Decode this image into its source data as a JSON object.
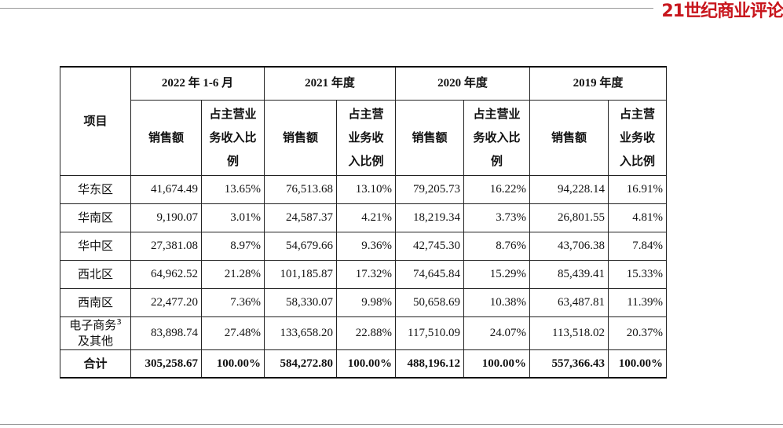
{
  "logo": "21世纪商业评论",
  "table": {
    "corner": "项目",
    "periods": [
      "2022 年 1-6 月",
      "2021 年度",
      "2020 年度",
      "2019 年度"
    ],
    "sub_headers": [
      [
        "销售额"
      ],
      [
        "占主营业",
        "务收入比",
        "例"
      ],
      [
        "销售额"
      ],
      [
        "占主营",
        "业务收",
        "入比例"
      ],
      [
        "销售额"
      ],
      [
        "占主营业",
        "务收入比",
        "例"
      ],
      [
        "销售额"
      ],
      [
        "占主营",
        "业务收",
        "入比例"
      ]
    ],
    "rows": [
      {
        "region": [
          "华东区"
        ],
        "cells": [
          "41,674.49",
          "13.65%",
          "76,513.68",
          "13.10%",
          "79,205.73",
          "16.22%",
          "94,228.14",
          "16.91%"
        ]
      },
      {
        "region": [
          "华南区"
        ],
        "cells": [
          "9,190.07",
          "3.01%",
          "24,587.37",
          "4.21%",
          "18,219.34",
          "3.73%",
          "26,801.55",
          "4.81%"
        ]
      },
      {
        "region": [
          "华中区"
        ],
        "cells": [
          "27,381.08",
          "8.97%",
          "54,679.66",
          "9.36%",
          "42,745.30",
          "8.76%",
          "43,706.38",
          "7.84%"
        ]
      },
      {
        "region": [
          "西北区"
        ],
        "cells": [
          "64,962.52",
          "21.28%",
          "101,185.87",
          "17.32%",
          "74,645.84",
          "15.29%",
          "85,439.41",
          "15.33%"
        ]
      },
      {
        "region": [
          "西南区"
        ],
        "cells": [
          "22,477.20",
          "7.36%",
          "58,330.07",
          "9.98%",
          "50,658.69",
          "10.38%",
          "63,487.81",
          "11.39%"
        ]
      },
      {
        "region": [
          "电子商务",
          "及其他"
        ],
        "region_sup": "3",
        "cells": [
          "83,898.74",
          "27.48%",
          "133,658.20",
          "22.88%",
          "117,510.09",
          "24.07%",
          "113,518.02",
          "20.37%"
        ]
      },
      {
        "region": [
          "合计"
        ],
        "total": true,
        "cells": [
          "305,258.67",
          "100.00%",
          "584,272.80",
          "100.00%",
          "488,196.12",
          "100.00%",
          "557,366.43",
          "100.00%"
        ]
      }
    ]
  }
}
